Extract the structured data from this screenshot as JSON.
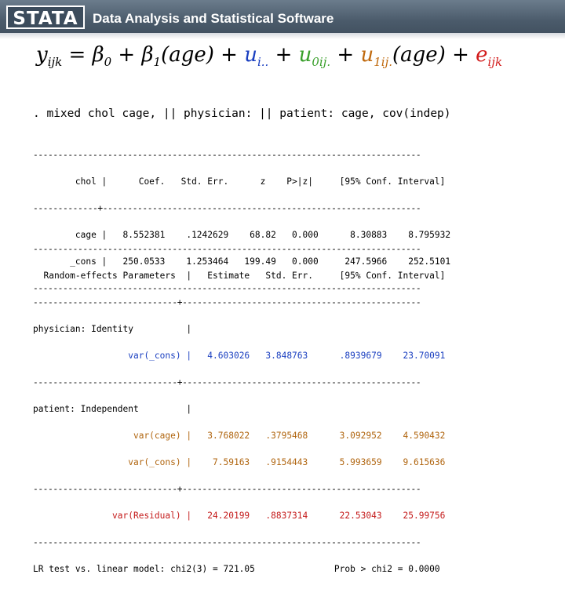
{
  "header": {
    "logo": "STATA",
    "tagline": "Data Analysis and Statistical Software"
  },
  "equation": {
    "lhs": "y",
    "lhs_sub": "ijk",
    "beta0": "β",
    "beta0_sub": "0",
    "beta1": "β",
    "beta1_sub": "1",
    "age": "(age)",
    "u_i": "u",
    "u_i_sub": "i..",
    "u0": "u",
    "u0_sub": "0ij.",
    "u1": "u",
    "u1_sub": "1ij.",
    "age2": "(age)",
    "e": "e",
    "e_sub": "ijk",
    "eq_sign": "=",
    "plus": "+"
  },
  "command": ". mixed chol cage, || physician: || patient: cage, cov(indep)",
  "fixed": {
    "rule": "------------------------------------------------------------------------------",
    "header": "        chol |      Coef.   Std. Err.      z    P>|z|     [95% Conf. Interval]",
    "mid_rule": "-------------+----------------------------------------------------------------",
    "rows": [
      "        cage |   8.552381    .1242629    68.82   0.000      8.30883    8.795932",
      "       _cons |   250.0533    1.253464   199.49   0.000     247.5966    252.5101"
    ],
    "end_rule": "------------------------------------------------------------------------------"
  },
  "random": {
    "rule": "------------------------------------------------------------------------------",
    "header": "  Random-effects Parameters  |   Estimate   Std. Err.     [95% Conf. Interval]",
    "mid_rule": "-----------------------------+------------------------------------------------",
    "physician_label": "physician: Identity          |",
    "physician_var": {
      "name": "                  var(_cons) |",
      "values": "   4.603026   3.848763      .8939679    23.70091"
    },
    "rule2": "-----------------------------+------------------------------------------------",
    "patient_label": "patient: Independent         |",
    "patient_var_age": {
      "name": "                   var(cage) |",
      "values": "   3.768022   .3795468      3.092952    4.590432"
    },
    "patient_var_cons": {
      "name": "                  var(_cons) |",
      "values": "    7.59163   .9154443      5.993659    9.615636"
    },
    "rule3": "-----------------------------+------------------------------------------------",
    "residual": {
      "name": "               var(Residual) |",
      "values": "   24.20199   .8837314      22.53043    25.99756"
    },
    "end_rule": "------------------------------------------------------------------------------",
    "lr_test": "LR test vs. linear model: chi2(3) = 721.05               Prob > chi2 = 0.0000"
  },
  "colors": {
    "header_bg": "#4a5a6a",
    "physician_blue": "#1a3fc0",
    "patient_orange": "#b0650f",
    "residual_red": "#c41a1a"
  }
}
